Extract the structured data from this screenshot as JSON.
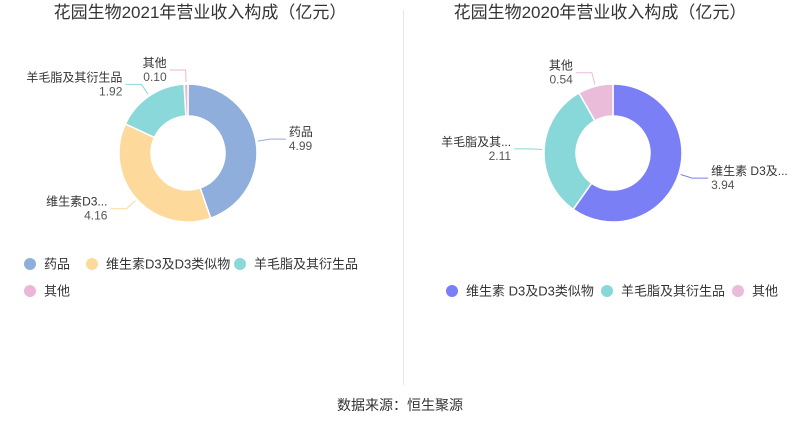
{
  "chart_data": [
    {
      "type": "donut",
      "title": "花园生物2021年营业收入构成（亿元）",
      "categories": [
        "药品",
        "维生素D3及D3类似物",
        "羊毛脂及其衍生品",
        "其他"
      ],
      "label_names": [
        "药品",
        "维生素D3...",
        "羊毛脂及其衍生品",
        "其他"
      ],
      "values": [
        4.99,
        4.16,
        1.92,
        0.1
      ],
      "value_labels": [
        "4.99",
        "4.16",
        "1.92",
        "0.10"
      ],
      "colors": [
        "#8faedc",
        "#fdd99b",
        "#8ad8d9",
        "#ebb6d9"
      ],
      "legend_position": "bottom"
    },
    {
      "type": "donut",
      "title": "花园生物2020年营业收入构成（亿元）",
      "categories": [
        "维生素 D3及D3类似物",
        "羊毛脂及其衍生品",
        "其他"
      ],
      "label_names": [
        "维生素 D3及...",
        "羊毛脂及其...",
        "其他"
      ],
      "values": [
        3.94,
        2.11,
        0.54
      ],
      "value_labels": [
        "3.94",
        "2.11",
        "0.54"
      ],
      "colors": [
        "#7b7ff5",
        "#88d8d9",
        "#ebbcd9"
      ],
      "legend_position": "bottom"
    }
  ],
  "footer": {
    "source": "数据来源：恒生聚源"
  }
}
